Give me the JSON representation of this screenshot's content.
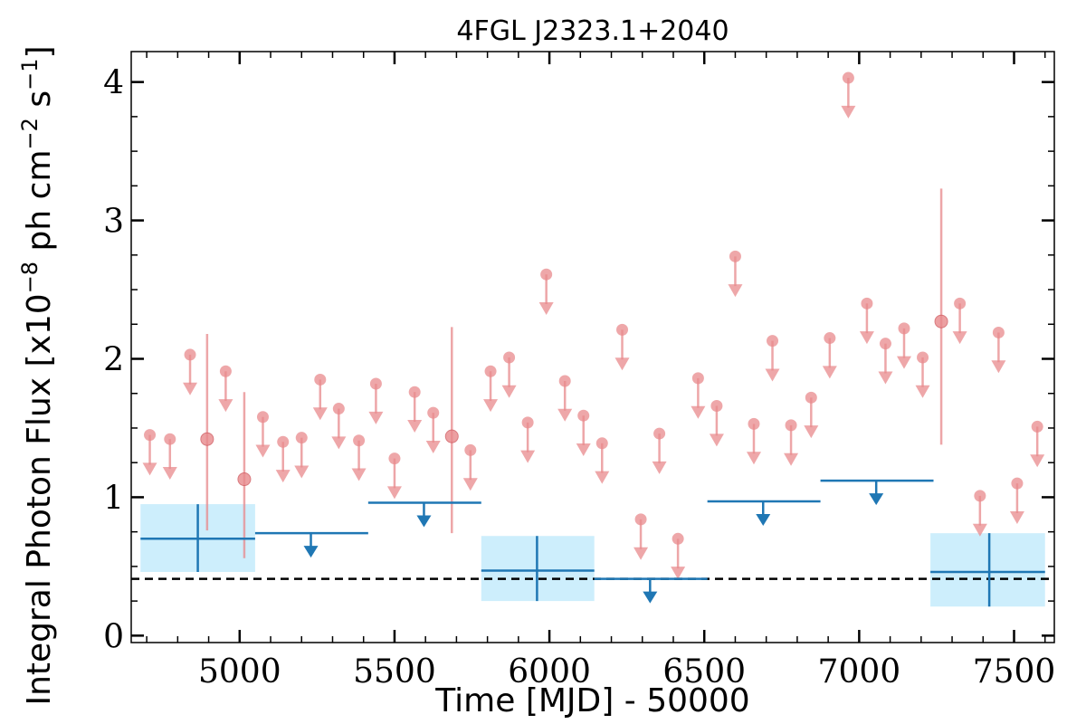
{
  "chart_data": {
    "type": "scatter",
    "title": "4FGL J2323.1+2040",
    "xlabel": "Time [MJD] - 50000",
    "ylabel_main": "Integral Photon Flux [x10",
    "ylabel_exp1": "−8",
    "ylabel_mid": " ph cm",
    "ylabel_exp2": "−2",
    "ylabel_end": " s",
    "ylabel_exp3": "−1",
    "ylabel_close": "]",
    "xlim": [
      4650,
      7630
    ],
    "ylim": [
      -0.05,
      4.22
    ],
    "x_ticks": [
      5000,
      5500,
      6000,
      6500,
      7000,
      7500
    ],
    "x_tick_labels": [
      "5000",
      "5500",
      "6000",
      "6500",
      "7000",
      "7500"
    ],
    "y_ticks": [
      0,
      1,
      2,
      3,
      4
    ],
    "y_tick_labels": [
      "0",
      "1",
      "2",
      "3",
      "4"
    ],
    "grid": false,
    "colors": {
      "fine": "#e8898c",
      "coarse": "#1f77b4",
      "band": "#cdeefc",
      "reference": "#000000"
    },
    "reference_line": {
      "y": 0.41,
      "style": "dashed"
    },
    "series": [
      {
        "role": "fine-upper-limits",
        "points": [
          {
            "x": 4710,
            "y": 1.45
          },
          {
            "x": 4775,
            "y": 1.42
          },
          {
            "x": 4840,
            "y": 2.03
          },
          {
            "x": 4955,
            "y": 1.91
          },
          {
            "x": 5075,
            "y": 1.58
          },
          {
            "x": 5140,
            "y": 1.4
          },
          {
            "x": 5200,
            "y": 1.43
          },
          {
            "x": 5260,
            "y": 1.85
          },
          {
            "x": 5320,
            "y": 1.64
          },
          {
            "x": 5385,
            "y": 1.41
          },
          {
            "x": 5440,
            "y": 1.82
          },
          {
            "x": 5500,
            "y": 1.28
          },
          {
            "x": 5565,
            "y": 1.76
          },
          {
            "x": 5625,
            "y": 1.61
          },
          {
            "x": 5745,
            "y": 1.34
          },
          {
            "x": 5810,
            "y": 1.91
          },
          {
            "x": 5870,
            "y": 2.01
          },
          {
            "x": 5930,
            "y": 1.54
          },
          {
            "x": 5990,
            "y": 2.61
          },
          {
            "x": 6050,
            "y": 1.84
          },
          {
            "x": 6110,
            "y": 1.59
          },
          {
            "x": 6170,
            "y": 1.39
          },
          {
            "x": 6235,
            "y": 2.21
          },
          {
            "x": 6295,
            "y": 0.84
          },
          {
            "x": 6355,
            "y": 1.46
          },
          {
            "x": 6415,
            "y": 0.7
          },
          {
            "x": 6480,
            "y": 1.86
          },
          {
            "x": 6540,
            "y": 1.66
          },
          {
            "x": 6600,
            "y": 2.74
          },
          {
            "x": 6660,
            "y": 1.53
          },
          {
            "x": 6720,
            "y": 2.13
          },
          {
            "x": 6780,
            "y": 1.52
          },
          {
            "x": 6845,
            "y": 1.72
          },
          {
            "x": 6905,
            "y": 2.15
          },
          {
            "x": 6965,
            "y": 4.03
          },
          {
            "x": 7025,
            "y": 2.4
          },
          {
            "x": 7085,
            "y": 2.11
          },
          {
            "x": 7145,
            "y": 2.22
          },
          {
            "x": 7205,
            "y": 2.01
          },
          {
            "x": 7325,
            "y": 2.4
          },
          {
            "x": 7390,
            "y": 1.01
          },
          {
            "x": 7450,
            "y": 2.19
          },
          {
            "x": 7510,
            "y": 1.1
          },
          {
            "x": 7575,
            "y": 1.51
          }
        ]
      },
      {
        "role": "fine-detections",
        "points": [
          {
            "x": 4895,
            "y": 1.42,
            "ylo": 0.76,
            "yhi": 2.18
          },
          {
            "x": 5015,
            "y": 1.13,
            "ylo": 0.56,
            "yhi": 1.76
          },
          {
            "x": 5685,
            "y": 1.44,
            "ylo": 0.74,
            "yhi": 2.23
          },
          {
            "x": 7265,
            "y": 2.27,
            "ylo": 1.38,
            "yhi": 3.23
          }
        ]
      },
      {
        "role": "coarse-detections",
        "points": [
          {
            "x": 4865,
            "xlo": 4680,
            "xhi": 5050,
            "y": 0.7,
            "ylo": 0.46,
            "yhi": 0.95
          },
          {
            "x": 5960,
            "xlo": 5780,
            "xhi": 6145,
            "y": 0.47,
            "ylo": 0.25,
            "yhi": 0.72
          },
          {
            "x": 7420,
            "xlo": 7230,
            "xhi": 7600,
            "y": 0.46,
            "ylo": 0.21,
            "yhi": 0.74
          }
        ]
      },
      {
        "role": "coarse-upper-limits",
        "points": [
          {
            "x": 5230,
            "xlo": 5050,
            "xhi": 5415,
            "y": 0.74
          },
          {
            "x": 5595,
            "xlo": 5415,
            "xhi": 5780,
            "y": 0.96
          },
          {
            "x": 6325,
            "xlo": 6145,
            "xhi": 6510,
            "y": 0.41
          },
          {
            "x": 6690,
            "xlo": 6510,
            "xhi": 6875,
            "y": 0.97
          },
          {
            "x": 7055,
            "xlo": 6875,
            "xhi": 7240,
            "y": 1.12
          }
        ]
      }
    ]
  }
}
